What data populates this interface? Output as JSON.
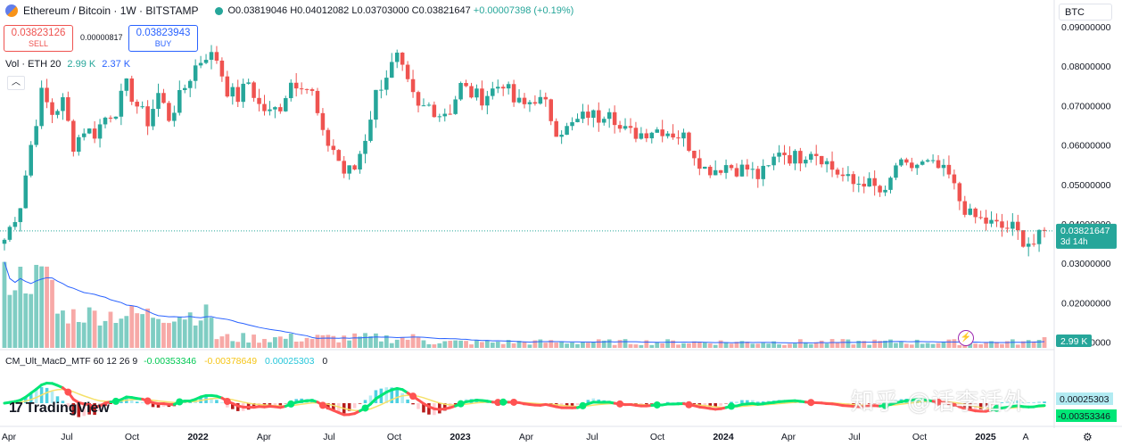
{
  "header": {
    "symbol": "Ethereum / Bitcoin · 1W · BITSTAMP",
    "open": "O0.03819046",
    "high": "H0.04012082",
    "low": "L0.03703000",
    "close": "C0.03821647",
    "change": "+0.00007398 (+0.19%)"
  },
  "trade": {
    "sell_price": "0.03823126",
    "sell_label": "SELL",
    "spread": "0.00000817",
    "buy_price": "0.03823943",
    "buy_label": "BUY"
  },
  "volume_legend": {
    "label": "Vol · ETH 20",
    "v1": "2.99 K",
    "v2": "2.37 K"
  },
  "collapse_icon": "chevron-up-icon",
  "currency": "BTC",
  "macd_legend": {
    "label": "CM_Ult_MacD_MTF 60 12 26 9",
    "v1": "-0.00353346",
    "v2": "-0.00378649",
    "v3": "0.00025303",
    "v4": "0"
  },
  "brand": {
    "name": "TradingView",
    "mark": "17"
  },
  "watermark": "知乎 @话李话外",
  "colors": {
    "up": "#26a69a",
    "down": "#ef5350",
    "macd_up": "#00e676",
    "macd_down": "#ff5252",
    "signal": "#f5e16a",
    "volume_ma": "#2962ff"
  },
  "chart_data": {
    "type": "candlestick",
    "price_axis": {
      "ylim": [
        0.01,
        0.095
      ],
      "ticks": [
        "0.09000000",
        "0.08000000",
        "0.07000000",
        "0.06000000",
        "0.05000000",
        "0.04000000",
        "0.03000000",
        "0.02000000",
        "0.01000000"
      ],
      "last_price": "0.03821647",
      "countdown": "3d 14h",
      "volume_label": "2.99 K"
    },
    "macd_axis": {
      "labels": [
        "0.00025303",
        "-0.00353346"
      ]
    },
    "time_axis": [
      "Apr",
      "Jul",
      "Oct",
      "2022",
      "Apr",
      "Jul",
      "Oct",
      "2023",
      "Apr",
      "Jul",
      "Oct",
      "2024",
      "Apr",
      "Jul",
      "Oct",
      "2025",
      "A"
    ],
    "time_axis_bold": [
      "2022",
      "2023",
      "2024",
      "2025"
    ],
    "waypoints": [
      [
        0,
        0.036
      ],
      [
        3,
        0.045
      ],
      [
        5,
        0.06
      ],
      [
        7,
        0.073
      ],
      [
        9,
        0.068
      ],
      [
        11,
        0.071
      ],
      [
        13,
        0.06
      ],
      [
        15,
        0.064
      ],
      [
        17,
        0.063
      ],
      [
        19,
        0.067
      ],
      [
        21,
        0.069
      ],
      [
        23,
        0.075
      ],
      [
        25,
        0.07
      ],
      [
        27,
        0.066
      ],
      [
        29,
        0.073
      ],
      [
        31,
        0.067
      ],
      [
        33,
        0.072
      ],
      [
        36,
        0.08
      ],
      [
        38,
        0.083
      ],
      [
        40,
        0.082
      ],
      [
        42,
        0.074
      ],
      [
        44,
        0.072
      ],
      [
        46,
        0.076
      ],
      [
        48,
        0.07
      ],
      [
        50,
        0.068
      ],
      [
        52,
        0.07
      ],
      [
        54,
        0.076
      ],
      [
        56,
        0.076
      ],
      [
        58,
        0.073
      ],
      [
        60,
        0.062
      ],
      [
        62,
        0.059
      ],
      [
        64,
        0.053
      ],
      [
        66,
        0.054
      ],
      [
        68,
        0.062
      ],
      [
        70,
        0.073
      ],
      [
        72,
        0.078
      ],
      [
        74,
        0.082
      ],
      [
        76,
        0.075
      ],
      [
        78,
        0.069
      ],
      [
        80,
        0.07
      ],
      [
        82,
        0.068
      ],
      [
        84,
        0.069
      ],
      [
        86,
        0.075
      ],
      [
        88,
        0.073
      ],
      [
        90,
        0.072
      ],
      [
        92,
        0.074
      ],
      [
        94,
        0.076
      ],
      [
        96,
        0.071
      ],
      [
        98,
        0.07
      ],
      [
        100,
        0.072
      ],
      [
        102,
        0.07
      ],
      [
        104,
        0.064
      ],
      [
        106,
        0.064
      ],
      [
        108,
        0.066
      ],
      [
        110,
        0.068
      ],
      [
        112,
        0.067
      ],
      [
        114,
        0.07
      ],
      [
        116,
        0.064
      ],
      [
        118,
        0.063
      ],
      [
        120,
        0.063
      ],
      [
        122,
        0.064
      ],
      [
        124,
        0.064
      ],
      [
        126,
        0.063
      ],
      [
        128,
        0.062
      ],
      [
        130,
        0.058
      ],
      [
        132,
        0.054
      ],
      [
        134,
        0.054
      ],
      [
        136,
        0.055
      ],
      [
        138,
        0.054
      ],
      [
        140,
        0.054
      ],
      [
        142,
        0.052
      ],
      [
        144,
        0.054
      ],
      [
        146,
        0.059
      ],
      [
        148,
        0.057
      ],
      [
        150,
        0.057
      ],
      [
        152,
        0.059
      ],
      [
        154,
        0.057
      ],
      [
        156,
        0.054
      ],
      [
        158,
        0.052
      ],
      [
        160,
        0.05
      ],
      [
        162,
        0.051
      ],
      [
        164,
        0.049
      ],
      [
        166,
        0.047
      ],
      [
        168,
        0.055
      ],
      [
        170,
        0.054
      ],
      [
        172,
        0.055
      ],
      [
        174,
        0.055
      ],
      [
        176,
        0.054
      ],
      [
        178,
        0.052
      ],
      [
        180,
        0.046
      ],
      [
        182,
        0.042
      ],
      [
        184,
        0.041
      ],
      [
        186,
        0.04
      ],
      [
        188,
        0.039
      ],
      [
        190,
        0.039
      ],
      [
        192,
        0.036
      ],
      [
        194,
        0.035
      ],
      [
        196,
        0.038
      ]
    ],
    "current_price": 0.03821647
  }
}
